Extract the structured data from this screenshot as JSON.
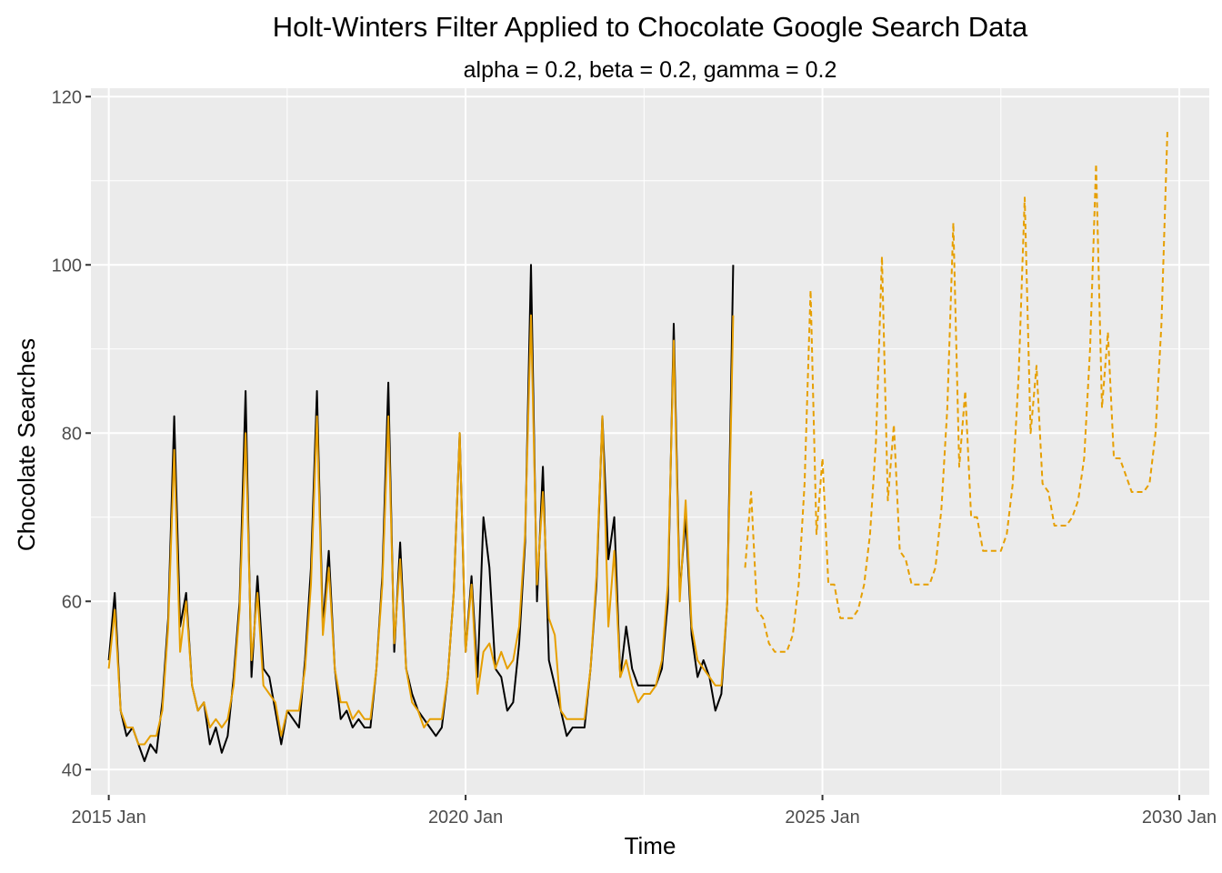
{
  "chart_data": {
    "type": "line",
    "title": "Holt-Winters Filter Applied to Chocolate Google Search Data",
    "subtitle": "alpha = 0.2, beta = 0.2, gamma = 0.2",
    "xlabel": "Time",
    "ylabel": "Chocolate Searches",
    "xlim": [
      2014.75,
      2030.42
    ],
    "ylim": [
      37,
      121
    ],
    "x_ticks": [
      {
        "value": 2015,
        "label": "2015 Jan"
      },
      {
        "value": 2020,
        "label": "2020 Jan"
      },
      {
        "value": 2025,
        "label": "2025 Jan"
      },
      {
        "value": 2030,
        "label": "2030 Jan"
      }
    ],
    "y_ticks": [
      40,
      60,
      80,
      100,
      120
    ],
    "grid": true,
    "legend": "none",
    "start_year": 2015,
    "colors": {
      "observed": "#000000",
      "fitted": "#E69F00",
      "panel": "#EBEBEB",
      "grid": "#FFFFFF"
    },
    "series": [
      {
        "style": "solid",
        "color": "#000000",
        "start_index": 0,
        "values": [
          53,
          61,
          47,
          44,
          45,
          43,
          41,
          43,
          42,
          48,
          58,
          82,
          57,
          61,
          50,
          47,
          48,
          43,
          45,
          42,
          44,
          51,
          60,
          85,
          51,
          63,
          52,
          51,
          47,
          43,
          47,
          46,
          45,
          53,
          64,
          85,
          57,
          66,
          52,
          46,
          47,
          45,
          46,
          45,
          45,
          52,
          63,
          86,
          54,
          67,
          52,
          49,
          47,
          46,
          45,
          44,
          45,
          51,
          61,
          80,
          54,
          63,
          51,
          70,
          64,
          52,
          51,
          47,
          48,
          55,
          67,
          100,
          60,
          76,
          53,
          50,
          47,
          44,
          45,
          45,
          45,
          52,
          62,
          82,
          65,
          70,
          51,
          57,
          52,
          50,
          50,
          50,
          50,
          52,
          60,
          93,
          61,
          70,
          56,
          51,
          53,
          51,
          47,
          49,
          60,
          100
        ]
      },
      {
        "style": "solid",
        "color": "#E69F00",
        "start_index": 0,
        "values": [
          52,
          59,
          47,
          45,
          45,
          43,
          43,
          44,
          44,
          47,
          57,
          78,
          54,
          60,
          50,
          47,
          48,
          45,
          46,
          45,
          46,
          50,
          59,
          80,
          53,
          61,
          50,
          49,
          48,
          44,
          47,
          47,
          47,
          52,
          62,
          82,
          56,
          64,
          52,
          48,
          48,
          46,
          47,
          46,
          46,
          52,
          62,
          82,
          55,
          65,
          52,
          48,
          47,
          45,
          46,
          46,
          46,
          51,
          61,
          80,
          54,
          62,
          49,
          54,
          55,
          52,
          54,
          52,
          53,
          57,
          68,
          94,
          62,
          73,
          58,
          56,
          47,
          46,
          46,
          46,
          46,
          52,
          63,
          82,
          57,
          66,
          51,
          53,
          50,
          48,
          49,
          49,
          50,
          53,
          62,
          91,
          60,
          72,
          57,
          53,
          52,
          51,
          50,
          50,
          60,
          94
        ]
      },
      {
        "style": "dashed",
        "color": "#E69F00",
        "start_index": 107,
        "values": [
          64,
          73,
          59,
          58,
          55,
          54,
          54,
          54,
          56,
          62,
          74,
          97,
          68,
          77,
          62,
          62,
          58,
          58,
          58,
          59,
          62,
          68,
          79,
          101,
          72,
          81,
          66,
          65,
          62,
          62,
          62,
          62,
          64,
          71,
          83,
          105,
          76,
          85,
          70,
          70,
          66,
          66,
          66,
          66,
          68,
          74,
          87,
          108,
          80,
          88,
          74,
          73,
          69,
          69,
          69,
          70,
          72,
          77,
          90,
          112,
          83,
          92,
          77,
          77,
          75,
          73,
          73,
          73,
          74,
          80,
          93,
          116
        ]
      }
    ]
  }
}
